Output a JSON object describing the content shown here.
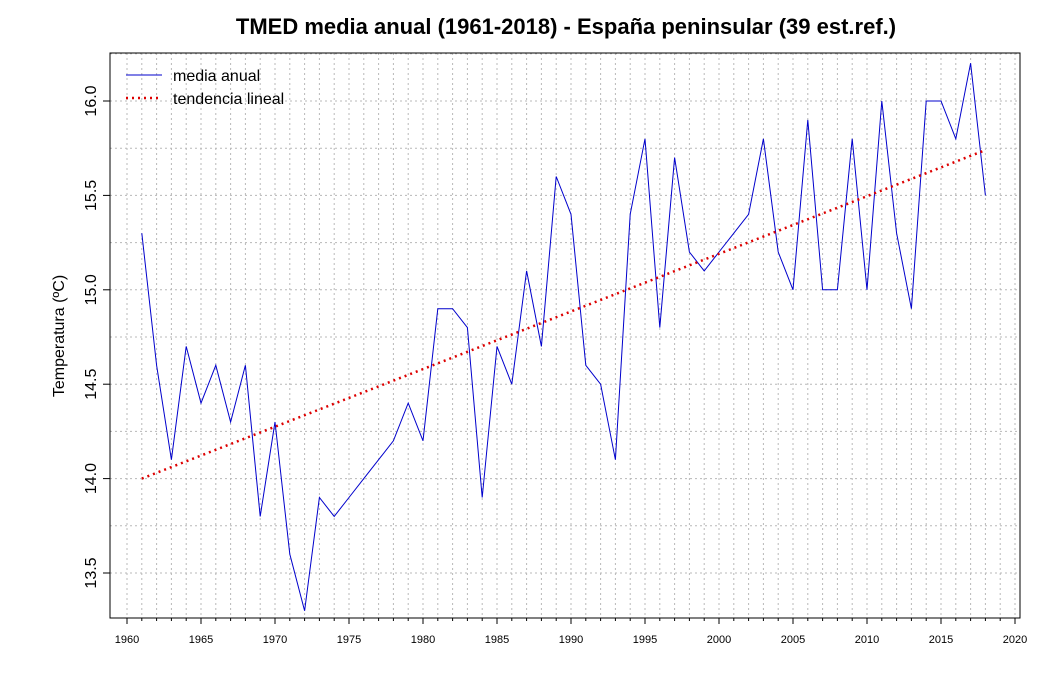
{
  "chart_data": {
    "type": "line",
    "title": "TMED media anual (1961-2018) - España peninsular (39 est.ref.)",
    "xlabel": "",
    "ylabel": "Temperatura (ºC)",
    "xlim": [
      1960,
      2020
    ],
    "ylim": [
      13.2,
      16.3
    ],
    "xticks": [
      1960,
      1965,
      1970,
      1975,
      1980,
      1985,
      1990,
      1995,
      2000,
      2005,
      2010,
      2015,
      2020
    ],
    "yticks": [
      13.5,
      14.0,
      14.5,
      15.0,
      15.5,
      16.0
    ],
    "ytick_labels": [
      "13.5",
      "14.0",
      "14.5",
      "15.0",
      "15.5",
      "16.0"
    ],
    "grid": true,
    "legend_position": "top-left",
    "series": [
      {
        "name": "media anual",
        "color": "#0000cc",
        "style": "solid",
        "x": [
          1961,
          1962,
          1963,
          1964,
          1965,
          1966,
          1967,
          1968,
          1969,
          1970,
          1971,
          1972,
          1973,
          1974,
          1975,
          1976,
          1977,
          1978,
          1979,
          1980,
          1981,
          1982,
          1983,
          1984,
          1985,
          1986,
          1987,
          1988,
          1989,
          1990,
          1991,
          1992,
          1993,
          1994,
          1995,
          1996,
          1997,
          1998,
          1999,
          2000,
          2001,
          2002,
          2003,
          2004,
          2005,
          2006,
          2007,
          2008,
          2009,
          2010,
          2011,
          2012,
          2013,
          2014,
          2015,
          2016,
          2017,
          2018
        ],
        "y": [
          15.3,
          14.6,
          14.1,
          14.7,
          14.4,
          14.6,
          14.3,
          14.6,
          13.8,
          14.3,
          13.6,
          13.3,
          13.9,
          13.8,
          13.9,
          14.0,
          14.1,
          14.2,
          14.4,
          14.2,
          14.9,
          14.9,
          14.8,
          13.9,
          14.7,
          14.5,
          15.1,
          14.7,
          15.6,
          15.4,
          14.6,
          14.5,
          14.1,
          15.4,
          15.8,
          14.8,
          15.7,
          15.2,
          15.1,
          15.2,
          15.3,
          15.4,
          15.8,
          15.2,
          15.0,
          15.9,
          15.0,
          15.0,
          15.8,
          15.0,
          16.0,
          15.3,
          14.9,
          16.0,
          16.0,
          15.8,
          16.2,
          15.5
        ]
      },
      {
        "name": "tendencia lineal",
        "color": "#dd0000",
        "style": "dotted",
        "x": [
          1961,
          2018
        ],
        "y": [
          14.0,
          15.74
        ]
      }
    ]
  }
}
